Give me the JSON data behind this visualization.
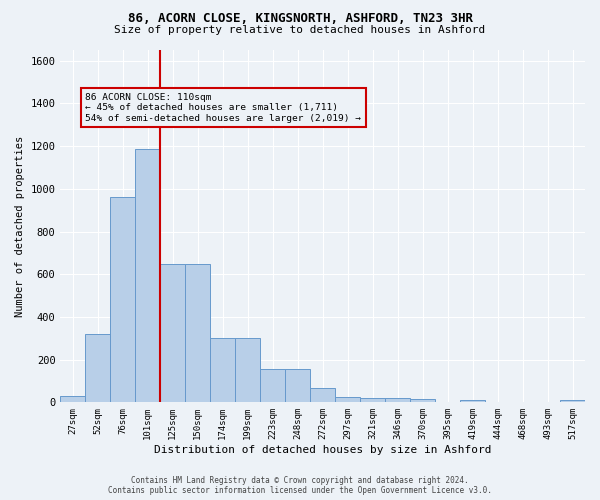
{
  "title_line1": "86, ACORN CLOSE, KINGSNORTH, ASHFORD, TN23 3HR",
  "title_line2": "Size of property relative to detached houses in Ashford",
  "xlabel": "Distribution of detached houses by size in Ashford",
  "ylabel": "Number of detached properties",
  "bar_labels": [
    "27sqm",
    "52sqm",
    "76sqm",
    "101sqm",
    "125sqm",
    "150sqm",
    "174sqm",
    "199sqm",
    "223sqm",
    "248sqm",
    "272sqm",
    "297sqm",
    "321sqm",
    "346sqm",
    "370sqm",
    "395sqm",
    "419sqm",
    "444sqm",
    "468sqm",
    "493sqm",
    "517sqm"
  ],
  "bar_values": [
    30,
    320,
    960,
    1185,
    650,
    650,
    300,
    300,
    155,
    155,
    65,
    25,
    20,
    20,
    15,
    0,
    10,
    0,
    0,
    0,
    12
  ],
  "bar_color": "#b8cfe8",
  "bar_edgecolor": "#6699cc",
  "vline_x_index": 3.0,
  "annotation_line1": "86 ACORN CLOSE: 110sqm",
  "annotation_line2": "← 45% of detached houses are smaller (1,711)",
  "annotation_line3": "54% of semi-detached houses are larger (2,019) →",
  "vline_color": "#cc0000",
  "annotation_box_edgecolor": "#cc0000",
  "ylim": [
    0,
    1650
  ],
  "yticks": [
    0,
    200,
    400,
    600,
    800,
    1000,
    1200,
    1400,
    1600
  ],
  "background_color": "#edf2f7",
  "grid_color": "#ffffff",
  "footer_line1": "Contains HM Land Registry data © Crown copyright and database right 2024.",
  "footer_line2": "Contains public sector information licensed under the Open Government Licence v3.0."
}
